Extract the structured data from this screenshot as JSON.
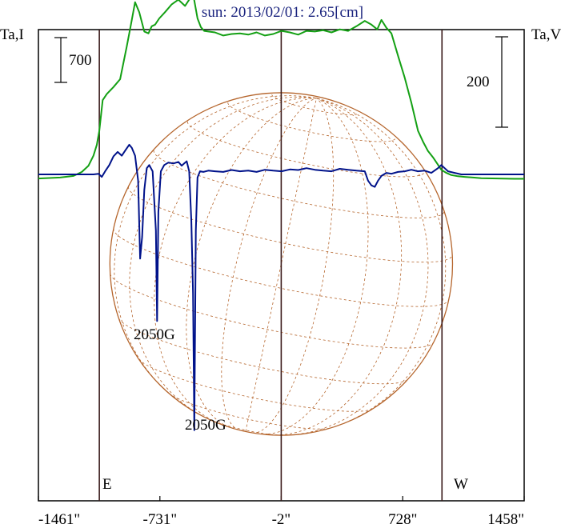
{
  "chart_data": {
    "type": "line",
    "title": "sun: 2013/02/01: 2.65[cm]",
    "left_axis_label": "Ta,I",
    "right_axis_label": "Ta,V",
    "left_scale_bar": "700",
    "right_scale_bar": "200",
    "x_tick_labels": [
      "-1461\"",
      "-731\"",
      "-2\"",
      "728\"",
      "1458\""
    ],
    "x_ticks_arcsec": [
      -1461,
      -731,
      -2,
      728,
      1458
    ],
    "xlim": [
      -1461,
      1458
    ],
    "limb_labels": {
      "east": "E",
      "west": "W"
    },
    "vertical_markers_arcsec": [
      -1095,
      -2,
      964
    ],
    "annotations": [
      {
        "text": "2050G",
        "x_arcsec": -748,
        "near": "first V dip"
      },
      {
        "text": "2050G",
        "x_arcsec": -524,
        "near": "second V dip"
      }
    ],
    "series": [
      {
        "color": "#14a014",
        "x": [
          -1461,
          -1330,
          -1250,
          -1200,
          -1160,
          -1130,
          -1110,
          -1095,
          -1075,
          -1050,
          -1010,
          -970,
          -930,
          -905,
          -880,
          -855,
          -825,
          -800,
          -780,
          -760,
          -735,
          -700,
          -660,
          -620,
          -580,
          -555,
          -540,
          -525,
          -505,
          -485,
          -465,
          -440,
          -400,
          -350,
          -300,
          -250,
          -200,
          -150,
          -100,
          -50,
          0,
          50,
          100,
          150,
          200,
          250,
          300,
          350,
          400,
          450,
          500,
          540,
          575,
          600,
          630,
          660,
          700,
          740,
          780,
          820,
          850,
          880,
          910,
          935,
          960,
          990,
          1020,
          1060,
          1100,
          1150,
          1200,
          1300,
          1400,
          1458
        ],
        "y": [
          -13,
          -10,
          -5,
          8,
          28,
          60,
          95,
          140,
          238,
          258,
          280,
          305,
          410,
          480,
          552,
          520,
          458,
          452,
          475,
          480,
          500,
          520,
          545,
          560,
          540,
          560,
          582,
          560,
          500,
          472,
          460,
          458,
          455,
          445,
          450,
          452,
          448,
          455,
          445,
          450,
          460,
          455,
          448,
          460,
          458,
          462,
          455,
          465,
          460,
          475,
          492,
          480,
          465,
          495,
          470,
          452,
          380,
          310,
          230,
          140,
          105,
          75,
          55,
          35,
          15,
          5,
          -2,
          -6,
          -8,
          -10,
          -12,
          -13,
          -14,
          -14
        ]
      },
      {
        "color": "#00128a",
        "x": [
          -1461,
          -1200,
          -1130,
          -1100,
          -1080,
          -1060,
          -1035,
          -1010,
          -985,
          -960,
          -935,
          -915,
          -900,
          -880,
          -862,
          -850,
          -838,
          -825,
          -810,
          -795,
          -775,
          -755,
          -748,
          -740,
          -725,
          -705,
          -680,
          -650,
          -620,
          -600,
          -585,
          -570,
          -555,
          -542,
          -532,
          -524,
          -515,
          -505,
          -490,
          -470,
          -440,
          -400,
          -350,
          -300,
          -250,
          -200,
          -150,
          -100,
          -50,
          0,
          50,
          100,
          150,
          200,
          250,
          300,
          350,
          400,
          450,
          500,
          520,
          540,
          560,
          580,
          600,
          630,
          660,
          700,
          740,
          780,
          820,
          860,
          900,
          940,
          960,
          980,
          1000,
          1040,
          1080,
          1150,
          1300,
          1458
        ],
        "y": [
          0,
          0,
          0,
          2,
          -8,
          10,
          30,
          58,
          72,
          60,
          80,
          95,
          85,
          60,
          -20,
          -270,
          -200,
          -50,
          20,
          30,
          10,
          -180,
          -470,
          -120,
          10,
          30,
          38,
          35,
          40,
          28,
          35,
          42,
          10,
          -150,
          -380,
          -820,
          -180,
          -10,
          10,
          8,
          12,
          10,
          8,
          14,
          10,
          12,
          8,
          15,
          12,
          10,
          16,
          14,
          20,
          15,
          12,
          10,
          18,
          15,
          12,
          10,
          -20,
          -35,
          -40,
          -20,
          -5,
          5,
          2,
          8,
          10,
          15,
          10,
          12,
          5,
          20,
          30,
          20,
          10,
          5,
          0,
          0,
          0,
          0
        ]
      }
    ]
  }
}
